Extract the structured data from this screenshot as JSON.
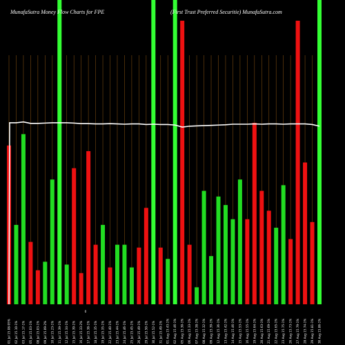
{
  "header": {
    "title_left": "MunafaSutra  Money Flow  Charts for FPE",
    "title_right": "(First Trust Preferred Securitie) MunafaSutra.com"
  },
  "axis": {
    "zero_label": "0"
  },
  "chart_data": {
    "type": "bar",
    "title": "MunafaSutra  Money Flow  Charts for FPE",
    "subtitle": "(First Trust Preferred Securitie) MunafaSutra.com",
    "ylim": [
      0,
      100
    ],
    "grid": false,
    "background": "#000000",
    "colors": {
      "up": "#22dd22",
      "down": "#ee1111",
      "highlight": "#33ff33",
      "line": "#ffffff",
      "divider": "#7a4a10"
    },
    "categories": [
      "01 Jul 15.08-95%",
      "02 Jul 15.10-1%",
      "03 Jul 15.17-1%",
      "05 Jul 15.03-1%",
      "08 Jul 15.03-1%",
      "09 Jul 15.09-2%",
      "10 Jul 15.23-1%",
      "11 Jul 15.39-1%",
      "12 Jul 15.34-1%",
      "15 Jul 15.39-1%",
      "16 Jul 15.33-2%",
      "17 Jul 15.38-1%",
      "18 Jul 15.35-1%",
      "19 Jul 15.35-1%",
      "22 Jul 15.40-1%",
      "23 Jul 15.44-1%",
      "24 Jul 15.46-1%",
      "25 Jul 15.45-1%",
      "26 Jul 15.49-1%",
      "29 Jul 15.50-1%",
      "30 Jul 15.52-1%",
      "31 Jul 15.49-1%",
      "01 Aug 15.43-1%",
      "02 Aug 15.46-1%",
      "05 Aug 15.30-1%",
      "06 Aug 15.33-1%",
      "07 Aug 15.38-1%",
      "08 Aug 15.32-1%",
      "09 Aug 15.39-1%",
      "12 Aug 15.36-1%",
      "13 Aug 15.42-1%",
      "14 Aug 15.46-1%",
      "15 Aug 15.53-1%",
      "16 Aug 15.55-1%",
      "19 Aug 15.64-1%",
      "20 Aug 15.63-1%",
      "21 Aug 15.69-1%",
      "22 Aug 15.65-1%",
      "23 Aug 15.75-1%",
      "26 Aug 15.73-1%",
      "27 Aug 15.79-1%",
      "28 Aug 15.74-1%",
      "29 Aug 15.81-1%",
      "30 Aug 15.86-1%"
    ],
    "values": [
      56,
      28,
      60,
      22,
      12,
      15,
      44,
      100,
      14,
      48,
      11,
      54,
      21,
      28,
      13,
      21,
      21,
      13,
      20,
      34,
      100,
      20,
      16,
      100,
      100,
      21,
      6,
      40,
      17,
      38,
      35,
      30,
      44,
      30,
      64,
      40,
      33,
      27,
      42,
      23,
      100,
      50,
      29,
      17
    ],
    "directions": [
      "down",
      "up",
      "up",
      "down",
      "down",
      "up",
      "up",
      "up",
      "up",
      "down",
      "down",
      "down",
      "down",
      "up",
      "down",
      "up",
      "up",
      "up",
      "down",
      "down",
      "up",
      "down",
      "up",
      "up",
      "down",
      "down",
      "up",
      "up",
      "up",
      "up",
      "up",
      "up",
      "up",
      "down",
      "down",
      "down",
      "down",
      "up",
      "up",
      "down",
      "down",
      "down",
      "down",
      "down"
    ],
    "highlight": [
      false,
      false,
      false,
      false,
      false,
      false,
      false,
      true,
      false,
      false,
      false,
      false,
      false,
      false,
      false,
      false,
      false,
      false,
      false,
      false,
      true,
      false,
      false,
      true,
      false,
      false,
      false,
      false,
      false,
      false,
      false,
      false,
      false,
      false,
      false,
      false,
      false,
      false,
      false,
      false,
      false,
      false,
      false,
      true
    ],
    "line_values": [
      64,
      64,
      64.3,
      63.8,
      63.8,
      63.9,
      64,
      64,
      64,
      63.9,
      63.7,
      63.7,
      63.6,
      63.6,
      63.7,
      63.6,
      63.5,
      63.6,
      63.6,
      63.4,
      63.5,
      63.4,
      63.4,
      63.2,
      62.5,
      62.8,
      62.9,
      63,
      63.1,
      63.2,
      63.3,
      63.5,
      63.5,
      63.5,
      63.6,
      63.5,
      63.6,
      63.6,
      63.5,
      63.6,
      63.6,
      63.6,
      63.4,
      62.8
    ]
  }
}
